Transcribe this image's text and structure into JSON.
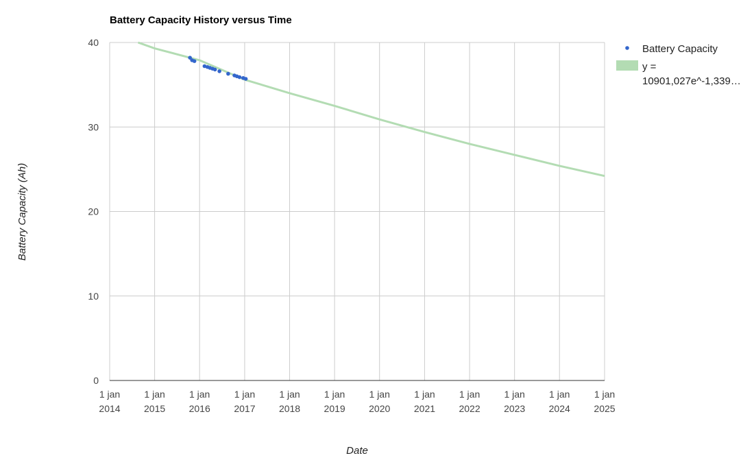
{
  "chart_data": {
    "type": "scatter",
    "title": "Battery Capacity History versus Time",
    "xlabel": "Date",
    "ylabel": "Battery Capacity (Ah)",
    "x_ticks": [
      {
        "line1": "1 jan",
        "line2": "2014",
        "date": "2014-01-01"
      },
      {
        "line1": "1 jan",
        "line2": "2015",
        "date": "2015-01-01"
      },
      {
        "line1": "1 jan",
        "line2": "2016",
        "date": "2016-01-01"
      },
      {
        "line1": "1 jan",
        "line2": "2017",
        "date": "2017-01-01"
      },
      {
        "line1": "1 jan",
        "line2": "2018",
        "date": "2018-01-01"
      },
      {
        "line1": "1 jan",
        "line2": "2019",
        "date": "2019-01-01"
      },
      {
        "line1": "1 jan",
        "line2": "2020",
        "date": "2020-01-01"
      },
      {
        "line1": "1 jan",
        "line2": "2021",
        "date": "2021-01-01"
      },
      {
        "line1": "1 jan",
        "line2": "2022",
        "date": "2022-01-01"
      },
      {
        "line1": "1 jan",
        "line2": "2023",
        "date": "2023-01-01"
      },
      {
        "line1": "1 jan",
        "line2": "2024",
        "date": "2024-01-01"
      },
      {
        "line1": "1 jan",
        "line2": "2025",
        "date": "2025-01-01"
      }
    ],
    "y_ticks": [
      "0",
      "10",
      "20",
      "30",
      "40"
    ],
    "xlim": [
      "2014-01-01",
      "2025-01-01"
    ],
    "ylim": [
      0,
      40
    ],
    "grid": true,
    "legend_position": "right",
    "series": [
      {
        "name": "Battery Capacity",
        "color": "#3366cc",
        "kind": "points",
        "points": [
          {
            "x": "2015-10-15",
            "y": 38.2
          },
          {
            "x": "2015-11-01",
            "y": 37.9
          },
          {
            "x": "2015-11-20",
            "y": 37.8
          },
          {
            "x": "2016-02-10",
            "y": 37.2
          },
          {
            "x": "2016-03-05",
            "y": 37.1
          },
          {
            "x": "2016-03-25",
            "y": 37.0
          },
          {
            "x": "2016-04-15",
            "y": 36.9
          },
          {
            "x": "2016-05-05",
            "y": 36.8
          },
          {
            "x": "2016-06-10",
            "y": 36.6
          },
          {
            "x": "2016-08-20",
            "y": 36.3
          },
          {
            "x": "2016-10-10",
            "y": 36.1
          },
          {
            "x": "2016-10-30",
            "y": 36.0
          },
          {
            "x": "2016-11-20",
            "y": 35.9
          },
          {
            "x": "2016-12-20",
            "y": 35.8
          },
          {
            "x": "2017-01-10",
            "y": 35.7
          }
        ]
      },
      {
        "name": "y = 10901,027e^-1,339…",
        "legend_line1": "y =",
        "legend_line2": "10901,027e^-1,339…",
        "color": "#b3dcb3",
        "kind": "line",
        "points": [
          {
            "x": "2014-08-20",
            "y": 40.0
          },
          {
            "x": "2015-01-01",
            "y": 39.3
          },
          {
            "x": "2016-01-01",
            "y": 37.9
          },
          {
            "x": "2017-01-01",
            "y": 35.6
          },
          {
            "x": "2018-01-01",
            "y": 34.0
          },
          {
            "x": "2019-01-01",
            "y": 32.5
          },
          {
            "x": "2020-01-01",
            "y": 30.9
          },
          {
            "x": "2021-01-01",
            "y": 29.4
          },
          {
            "x": "2022-01-01",
            "y": 28.0
          },
          {
            "x": "2023-01-01",
            "y": 26.7
          },
          {
            "x": "2024-01-01",
            "y": 25.4
          },
          {
            "x": "2025-01-01",
            "y": 24.2
          }
        ]
      }
    ]
  }
}
